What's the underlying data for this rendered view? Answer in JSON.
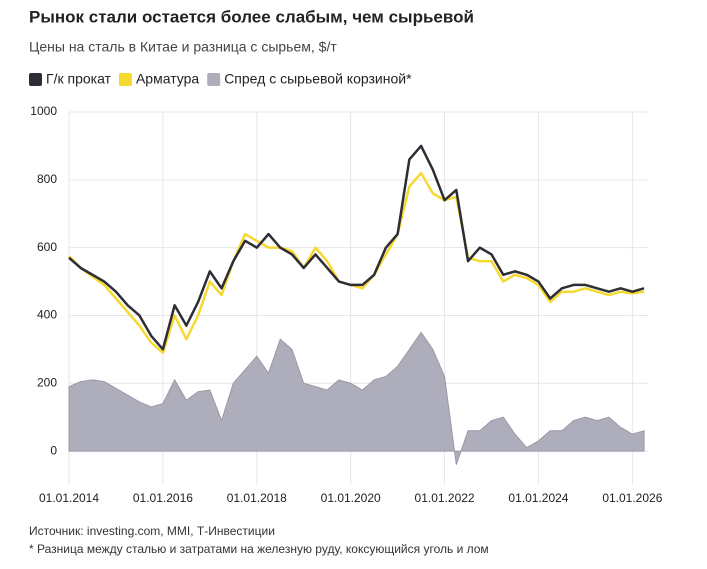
{
  "chart_data": {
    "type": "line",
    "title": "Рынок стали остается более слабым, чем сырьевой",
    "subtitle": "Цены на сталь в Китае и разница с сырьем, $/т",
    "source": "Источник: investing.com, MMI, Т-Инвестиции",
    "note": "* Разница между сталью и затратами на железную руду, коксующийся уголь и лом",
    "x": [
      "01.01.2014",
      "01.04.2014",
      "01.07.2014",
      "01.10.2014",
      "01.01.2015",
      "01.04.2015",
      "01.07.2015",
      "01.10.2015",
      "01.01.2016",
      "01.04.2016",
      "01.07.2016",
      "01.10.2016",
      "01.01.2017",
      "01.04.2017",
      "01.07.2017",
      "01.10.2017",
      "01.01.2018",
      "01.04.2018",
      "01.07.2018",
      "01.10.2018",
      "01.01.2019",
      "01.04.2019",
      "01.07.2019",
      "01.10.2019",
      "01.01.2020",
      "01.04.2020",
      "01.07.2020",
      "01.10.2020",
      "01.01.2021",
      "01.04.2021",
      "01.07.2021",
      "01.10.2021",
      "01.01.2022",
      "01.04.2022",
      "01.07.2022",
      "01.10.2022",
      "01.01.2023",
      "01.04.2023",
      "01.07.2023",
      "01.10.2023",
      "01.01.2024",
      "01.04.2024",
      "01.07.2024",
      "01.10.2024",
      "01.01.2025",
      "01.04.2025",
      "01.07.2025",
      "01.10.2025",
      "01.01.2026",
      "01.04.2026"
    ],
    "series": [
      {
        "name": "Спред с сырьевой корзиной*",
        "color": "#aeadbb",
        "style": "area",
        "values": [
          190,
          205,
          210,
          205,
          185,
          165,
          145,
          130,
          140,
          210,
          150,
          175,
          180,
          90,
          200,
          240,
          280,
          230,
          330,
          300,
          200,
          190,
          180,
          210,
          200,
          180,
          210,
          220,
          250,
          300,
          350,
          300,
          220,
          -40,
          60,
          60,
          90,
          100,
          50,
          10,
          30,
          60,
          60,
          90,
          100,
          90,
          100,
          70,
          50,
          60
        ]
      },
      {
        "name": "Арматура",
        "color": "#f5d931",
        "style": "line",
        "values": [
          575,
          540,
          515,
          490,
          450,
          410,
          370,
          320,
          290,
          400,
          330,
          400,
          500,
          460,
          560,
          640,
          620,
          600,
          600,
          590,
          540,
          600,
          560,
          500,
          490,
          480,
          520,
          580,
          640,
          780,
          820,
          760,
          740,
          750,
          570,
          560,
          560,
          500,
          520,
          510,
          490,
          440,
          470,
          470,
          480,
          470,
          460,
          470,
          465,
          470
        ]
      },
      {
        "name": "Г/к прокат",
        "color": "#2e2d35",
        "style": "line",
        "values": [
          570,
          540,
          520,
          500,
          470,
          430,
          400,
          340,
          300,
          430,
          370,
          440,
          530,
          480,
          560,
          620,
          600,
          640,
          600,
          580,
          540,
          580,
          540,
          500,
          490,
          490,
          520,
          600,
          640,
          860,
          900,
          830,
          740,
          770,
          560,
          600,
          580,
          520,
          530,
          520,
          500,
          450,
          480,
          490,
          490,
          480,
          470,
          480,
          470,
          480
        ]
      }
    ],
    "legend_order": [
      2,
      1,
      0
    ],
    "xlim": [
      "01.01.2014",
      "01.05.2026"
    ],
    "xticks": [
      "01.01.2014",
      "01.01.2016",
      "01.01.2018",
      "01.01.2020",
      "01.01.2022",
      "01.01.2024",
      "01.01.2026"
    ],
    "ylim": [
      -100,
      1000
    ],
    "yticks": [
      0,
      200,
      400,
      600,
      800,
      1000
    ],
    "grid": true
  }
}
